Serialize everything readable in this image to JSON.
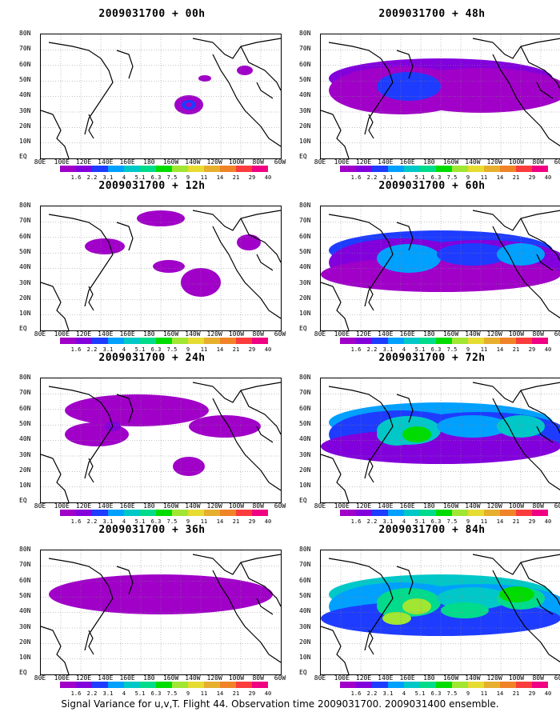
{
  "figure": {
    "footer_text": "Signal Variance for u,v,T. Flight 44. Observation time 2009031700. 2009031400 ensemble.",
    "latitude_labels": [
      "80N",
      "70N",
      "60N",
      "50N",
      "40N",
      "30N",
      "20N",
      "10N",
      "EQ"
    ],
    "longitude_labels": [
      "80E",
      "100E",
      "120E",
      "140E",
      "160E",
      "180",
      "160W",
      "140W",
      "120W",
      "100W",
      "80W",
      "60W"
    ],
    "colorbar_labels": [
      "1.6",
      "2.2",
      "3.1",
      "4",
      "5.1",
      "6.3",
      "7.5",
      "9",
      "11",
      "14",
      "21",
      "29",
      "40"
    ],
    "colorbar_colors": [
      "#a000c8",
      "#8200dc",
      "#1e3cff",
      "#00a0ff",
      "#00c8c8",
      "#00dc8c",
      "#00dc00",
      "#a0e632",
      "#e6dc32",
      "#e6af2d",
      "#f08228",
      "#fa3c3c",
      "#f00082"
    ]
  },
  "panels": [
    {
      "title": "2009031700 + 00h",
      "level": 0
    },
    {
      "title": "2009031700 + 48h",
      "level": 4
    },
    {
      "title": "2009031700 + 12h",
      "level": 1
    },
    {
      "title": "2009031700 + 60h",
      "level": 5
    },
    {
      "title": "2009031700 + 24h",
      "level": 2
    },
    {
      "title": "2009031700 + 72h",
      "level": 6
    },
    {
      "title": "2009031700 + 36h",
      "level": 3
    },
    {
      "title": "2009031700 + 84h",
      "level": 7
    }
  ]
}
